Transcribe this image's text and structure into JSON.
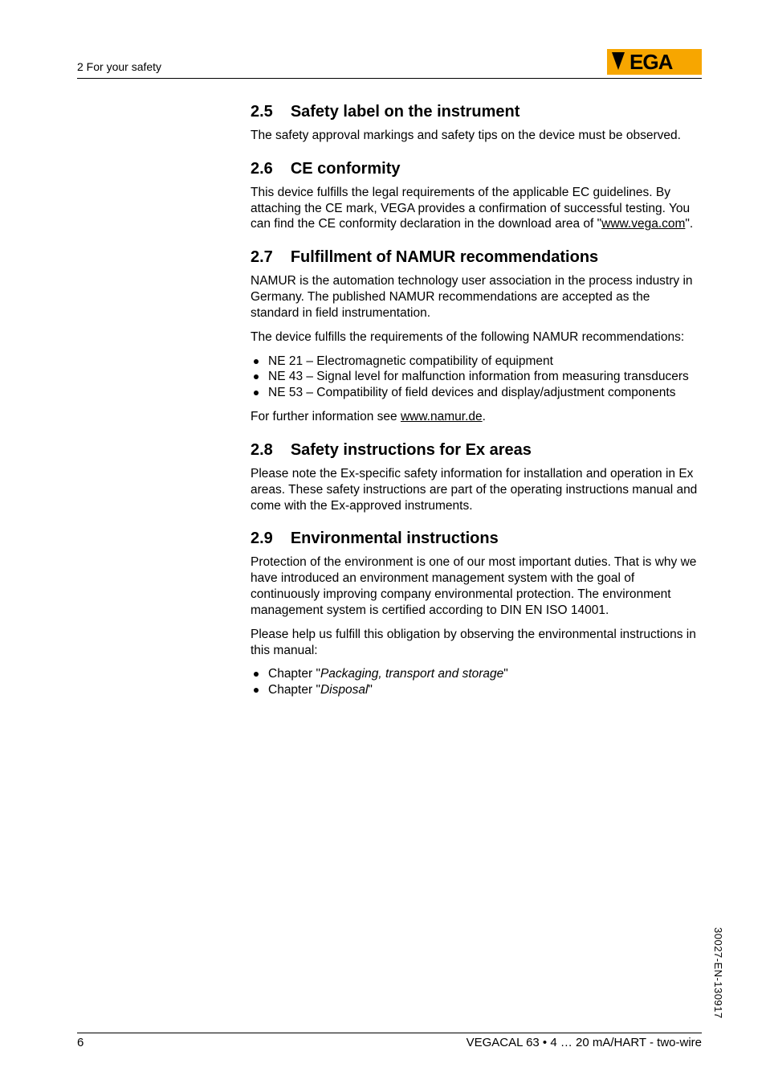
{
  "header": {
    "section_label": "2 For your safety"
  },
  "logo": {
    "text": "VEGA",
    "bg_color": "#f7a600",
    "triangle_color": "#000000",
    "text_color": "#000000"
  },
  "sections": [
    {
      "num": "2.5",
      "title": "Safety label on the instrument",
      "blocks": [
        {
          "type": "para",
          "text": "The safety approval markings and safety tips on the device must be observed."
        }
      ]
    },
    {
      "num": "2.6",
      "title": "CE conformity",
      "blocks": [
        {
          "type": "para_html",
          "html": "This device fulfills the legal requirements of the applicable EC guidelines. By attaching the CE mark, VEGA provides a confirmation of successful testing. You can find the CE conformity declaration in the download area of \"<span class=\"underline\">www.vega.com</span>\"."
        }
      ]
    },
    {
      "num": "2.7",
      "title": "Fulfillment of NAMUR recommendations",
      "blocks": [
        {
          "type": "para",
          "text": "NAMUR is the automation technology user association in the process industry in Germany. The published NAMUR recommendations are accepted as the standard in field instrumentation."
        },
        {
          "type": "para",
          "text": "The device fulfills the requirements of the following NAMUR recommendations:"
        },
        {
          "type": "list",
          "items": [
            "NE 21 – Electromagnetic compatibility of equipment",
            "NE 43 – Signal level for malfunction information from measuring transducers",
            "NE 53 – Compatibility of field devices and display/adjustment components"
          ]
        },
        {
          "type": "para_html",
          "html": "For further information see <span class=\"underline\">www.namur.de</span>."
        }
      ]
    },
    {
      "num": "2.8",
      "title": "Safety instructions for Ex areas",
      "blocks": [
        {
          "type": "para",
          "text": "Please note the Ex-specific safety information for installation and operation in Ex areas. These safety instructions are part of the operating instructions manual and come with the Ex-approved instruments."
        }
      ]
    },
    {
      "num": "2.9",
      "title": "Environmental instructions",
      "blocks": [
        {
          "type": "para",
          "text": "Protection of the environment is one of our most important duties. That is why we have introduced an environment management system with the goal of continuously improving company environmental protection. The environment management system is certified according to DIN EN ISO 14001."
        },
        {
          "type": "para",
          "text": "Please help us fulfill this obligation by observing the environmental instructions in this manual:"
        },
        {
          "type": "list_html",
          "items": [
            "Chapter \"<span class=\"italic\">Packaging, transport and storage</span>\"",
            "Chapter \"<span class=\"italic\">Disposal</span>\""
          ]
        }
      ]
    }
  ],
  "footer": {
    "page_number": "6",
    "doc_title": "VEGACAL 63 • 4 … 20 mA/HART - two-wire"
  },
  "side_code": "30027-EN-130917"
}
